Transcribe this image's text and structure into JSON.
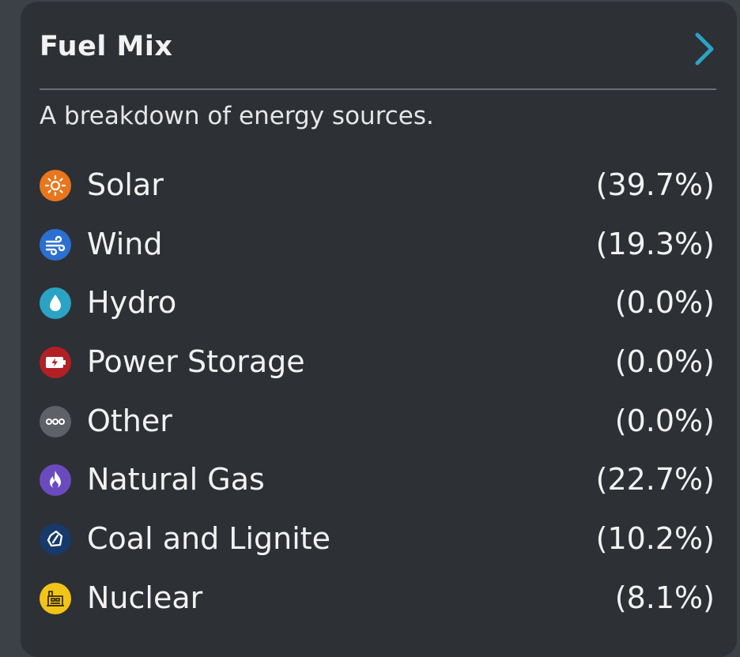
{
  "card": {
    "title": "Fuel Mix",
    "subtitle": "A breakdown of energy sources.",
    "accent_color": "#2aa3c4"
  },
  "sources": [
    {
      "label": "Solar",
      "percent": "(39.7%)",
      "icon": "sun-icon",
      "color": "#e8761d"
    },
    {
      "label": "Wind",
      "percent": "(19.3%)",
      "icon": "wind-icon",
      "color": "#2b6fd0"
    },
    {
      "label": "Hydro",
      "percent": "(0.0%)",
      "icon": "water-drop-icon",
      "color": "#2aa3c4"
    },
    {
      "label": "Power Storage",
      "percent": "(0.0%)",
      "icon": "battery-icon",
      "color": "#b21f24"
    },
    {
      "label": "Other",
      "percent": "(0.0%)",
      "icon": "ellipsis-icon",
      "color": "#5e6268"
    },
    {
      "label": "Natural Gas",
      "percent": "(22.7%)",
      "icon": "flame-icon",
      "color": "#6a4bbf"
    },
    {
      "label": "Coal and Lignite",
      "percent": "(10.2%)",
      "icon": "coal-icon",
      "color": "#173a6b"
    },
    {
      "label": "Nuclear",
      "percent": "(8.1%)",
      "icon": "nuclear-plant-icon",
      "color": "#f2c418"
    }
  ]
}
